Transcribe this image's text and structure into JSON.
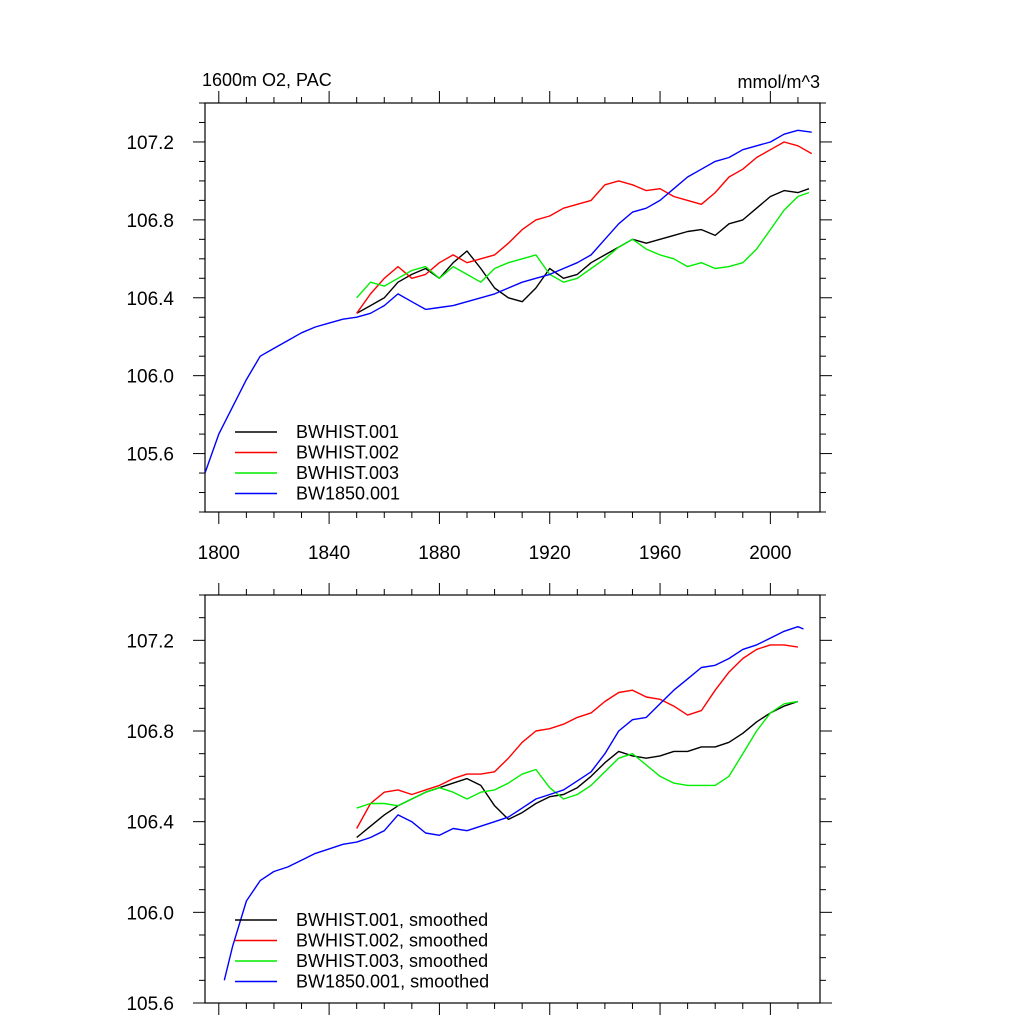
{
  "chart_data": [
    {
      "type": "line",
      "title_left": "1600m O2, PAC",
      "title_right": "mmol/m^3",
      "xlabel": "",
      "ylabel": "",
      "xlim": [
        1795,
        2018
      ],
      "ylim": [
        105.3,
        107.4
      ],
      "x_ticks": [
        1800,
        1840,
        1880,
        1920,
        1960,
        2000
      ],
      "y_ticks": [
        105.6,
        106.0,
        106.4,
        106.8,
        107.2
      ],
      "y_tick_labels": [
        "105.6",
        "106.0",
        "106.4",
        "106.8",
        "107.2"
      ],
      "legend_position": "bottom-left",
      "series": [
        {
          "name": "BWHIST.001",
          "color": "#000000",
          "x": [
            1850,
            1855,
            1860,
            1865,
            1870,
            1875,
            1880,
            1885,
            1890,
            1895,
            1900,
            1905,
            1910,
            1915,
            1920,
            1925,
            1930,
            1935,
            1940,
            1945,
            1950,
            1955,
            1960,
            1965,
            1970,
            1975,
            1980,
            1985,
            1990,
            1995,
            2000,
            2005,
            2010,
            2014
          ],
          "y": [
            106.32,
            106.36,
            106.4,
            106.48,
            106.52,
            106.55,
            106.5,
            106.58,
            106.64,
            106.55,
            106.45,
            106.4,
            106.38,
            106.45,
            106.55,
            106.5,
            106.52,
            106.58,
            106.62,
            106.66,
            106.7,
            106.68,
            106.7,
            106.72,
            106.74,
            106.75,
            106.72,
            106.78,
            106.8,
            106.86,
            106.92,
            106.95,
            106.94,
            106.96
          ]
        },
        {
          "name": "BWHIST.002",
          "color": "#ff0000",
          "x": [
            1850,
            1855,
            1860,
            1865,
            1870,
            1875,
            1880,
            1885,
            1890,
            1895,
            1900,
            1905,
            1910,
            1915,
            1920,
            1925,
            1930,
            1935,
            1940,
            1945,
            1950,
            1955,
            1960,
            1965,
            1970,
            1975,
            1980,
            1985,
            1990,
            1995,
            2000,
            2005,
            2010,
            2015
          ],
          "y": [
            106.32,
            106.42,
            106.5,
            106.56,
            106.5,
            106.52,
            106.58,
            106.62,
            106.58,
            106.6,
            106.62,
            106.68,
            106.75,
            106.8,
            106.82,
            106.86,
            106.88,
            106.9,
            106.98,
            107.0,
            106.98,
            106.95,
            106.96,
            106.92,
            106.9,
            106.88,
            106.94,
            107.02,
            107.06,
            107.12,
            107.16,
            107.2,
            107.18,
            107.14
          ]
        },
        {
          "name": "BWHIST.003",
          "color": "#00ee00",
          "x": [
            1850,
            1855,
            1860,
            1865,
            1870,
            1875,
            1880,
            1885,
            1890,
            1895,
            1900,
            1905,
            1910,
            1915,
            1920,
            1925,
            1930,
            1935,
            1940,
            1945,
            1950,
            1955,
            1960,
            1965,
            1970,
            1975,
            1980,
            1985,
            1990,
            1995,
            2000,
            2005,
            2010,
            2014
          ],
          "y": [
            106.4,
            106.48,
            106.46,
            106.5,
            106.54,
            106.56,
            106.5,
            106.56,
            106.52,
            106.48,
            106.55,
            106.58,
            106.6,
            106.62,
            106.52,
            106.48,
            106.5,
            106.55,
            106.6,
            106.66,
            106.7,
            106.65,
            106.62,
            106.6,
            106.56,
            106.58,
            106.55,
            106.56,
            106.58,
            106.65,
            106.75,
            106.85,
            106.92,
            106.94
          ]
        },
        {
          "name": "BW1850.001",
          "color": "#0000ff",
          "x": [
            1795,
            1800,
            1805,
            1810,
            1815,
            1820,
            1825,
            1830,
            1835,
            1840,
            1845,
            1850,
            1855,
            1860,
            1865,
            1870,
            1875,
            1880,
            1885,
            1890,
            1895,
            1900,
            1905,
            1910,
            1915,
            1920,
            1925,
            1930,
            1935,
            1940,
            1945,
            1950,
            1955,
            1960,
            1965,
            1970,
            1975,
            1980,
            1985,
            1990,
            1995,
            2000,
            2005,
            2010,
            2015
          ],
          "y": [
            105.5,
            105.7,
            105.84,
            105.98,
            106.1,
            106.14,
            106.18,
            106.22,
            106.25,
            106.27,
            106.29,
            106.3,
            106.32,
            106.36,
            106.42,
            106.38,
            106.34,
            106.35,
            106.36,
            106.38,
            106.4,
            106.42,
            106.45,
            106.48,
            106.5,
            106.52,
            106.55,
            106.58,
            106.62,
            106.7,
            106.78,
            106.84,
            106.86,
            106.9,
            106.96,
            107.02,
            107.06,
            107.1,
            107.12,
            107.16,
            107.18,
            107.2,
            107.24,
            107.26,
            107.25
          ]
        }
      ]
    },
    {
      "type": "line",
      "xlim": [
        1795,
        2018
      ],
      "ylim": [
        105.6,
        107.4
      ],
      "x_ticks": [
        1800,
        1840,
        1880,
        1920,
        1960,
        2000
      ],
      "y_ticks": [
        105.6,
        106.0,
        106.4,
        106.8,
        107.2
      ],
      "y_tick_labels": [
        "105.6",
        "106.0",
        "106.4",
        "106.8",
        "107.2"
      ],
      "legend_position": "bottom-left",
      "series": [
        {
          "name": "BWHIST.001, smoothed",
          "color": "#000000",
          "x": [
            1850,
            1855,
            1860,
            1865,
            1870,
            1875,
            1880,
            1885,
            1890,
            1895,
            1900,
            1905,
            1910,
            1915,
            1920,
            1925,
            1930,
            1935,
            1940,
            1945,
            1950,
            1955,
            1960,
            1965,
            1970,
            1975,
            1980,
            1985,
            1990,
            1995,
            2000,
            2005,
            2010
          ],
          "y": [
            106.33,
            106.38,
            106.43,
            106.47,
            106.5,
            106.53,
            106.55,
            106.57,
            106.59,
            106.56,
            106.47,
            106.41,
            106.44,
            106.48,
            106.51,
            106.52,
            106.55,
            106.6,
            106.66,
            106.71,
            106.69,
            106.68,
            106.69,
            106.71,
            106.71,
            106.73,
            106.73,
            106.75,
            106.79,
            106.84,
            106.88,
            106.91,
            106.93
          ]
        },
        {
          "name": "BWHIST.002, smoothed",
          "color": "#ff0000",
          "x": [
            1850,
            1855,
            1860,
            1865,
            1870,
            1875,
            1880,
            1885,
            1890,
            1895,
            1900,
            1905,
            1910,
            1915,
            1920,
            1925,
            1930,
            1935,
            1940,
            1945,
            1950,
            1955,
            1960,
            1965,
            1970,
            1975,
            1980,
            1985,
            1990,
            1995,
            2000,
            2005,
            2010
          ],
          "y": [
            106.37,
            106.48,
            106.53,
            106.54,
            106.52,
            106.54,
            106.56,
            106.59,
            106.61,
            106.61,
            106.62,
            106.68,
            106.75,
            106.8,
            106.81,
            106.83,
            106.86,
            106.88,
            106.93,
            106.97,
            106.98,
            106.95,
            106.94,
            106.91,
            106.87,
            106.89,
            106.98,
            107.06,
            107.12,
            107.16,
            107.18,
            107.18,
            107.17
          ]
        },
        {
          "name": "BWHIST.003, smoothed",
          "color": "#00ee00",
          "x": [
            1850,
            1855,
            1860,
            1865,
            1870,
            1875,
            1880,
            1885,
            1890,
            1895,
            1900,
            1905,
            1910,
            1915,
            1920,
            1925,
            1930,
            1935,
            1940,
            1945,
            1950,
            1955,
            1960,
            1965,
            1970,
            1975,
            1980,
            1985,
            1990,
            1995,
            2000,
            2005,
            2010
          ],
          "y": [
            106.46,
            106.48,
            106.48,
            106.47,
            106.5,
            106.53,
            106.55,
            106.53,
            106.5,
            106.53,
            106.54,
            106.57,
            106.61,
            106.63,
            106.55,
            106.5,
            106.52,
            106.56,
            106.62,
            106.68,
            106.7,
            106.65,
            106.6,
            106.57,
            106.56,
            106.56,
            106.56,
            106.6,
            106.7,
            106.8,
            106.88,
            106.92,
            106.93
          ]
        },
        {
          "name": "BW1850.001, smoothed",
          "color": "#0000ff",
          "x": [
            1802,
            1805,
            1810,
            1815,
            1820,
            1825,
            1830,
            1835,
            1840,
            1845,
            1850,
            1855,
            1860,
            1865,
            1870,
            1875,
            1880,
            1885,
            1890,
            1895,
            1900,
            1905,
            1910,
            1915,
            1920,
            1925,
            1930,
            1935,
            1940,
            1945,
            1950,
            1955,
            1960,
            1965,
            1970,
            1975,
            1980,
            1985,
            1990,
            1995,
            2000,
            2005,
            2010,
            2012
          ],
          "y": [
            105.7,
            105.85,
            106.05,
            106.14,
            106.18,
            106.2,
            106.23,
            106.26,
            106.28,
            106.3,
            106.31,
            106.33,
            106.36,
            106.43,
            106.4,
            106.35,
            106.34,
            106.37,
            106.36,
            106.38,
            106.4,
            106.42,
            106.46,
            106.5,
            106.52,
            106.54,
            106.58,
            106.62,
            106.7,
            106.8,
            106.85,
            106.86,
            106.92,
            106.98,
            107.03,
            107.08,
            107.09,
            107.12,
            107.16,
            107.18,
            107.21,
            107.24,
            107.26,
            107.25
          ]
        }
      ]
    }
  ]
}
